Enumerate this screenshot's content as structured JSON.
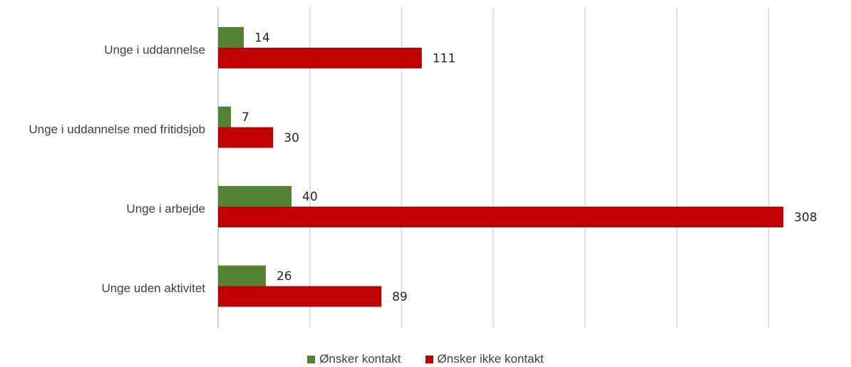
{
  "chart_data": {
    "type": "bar",
    "orientation": "horizontal",
    "categories": [
      "Unge i uddannelse",
      "Unge i uddannelse med fritidsjob",
      "Unge i arbejde",
      "Unge uden aktivitet"
    ],
    "series": [
      {
        "name": "Ønsker kontakt",
        "color": "#548235",
        "values": [
          14,
          7,
          40,
          26
        ]
      },
      {
        "name": "Ønsker ikke kontakt",
        "color": "#C00000",
        "values": [
          111,
          30,
          308,
          89
        ]
      }
    ],
    "xlim": [
      0,
      350
    ],
    "grid": true,
    "legend_position": "bottom"
  }
}
